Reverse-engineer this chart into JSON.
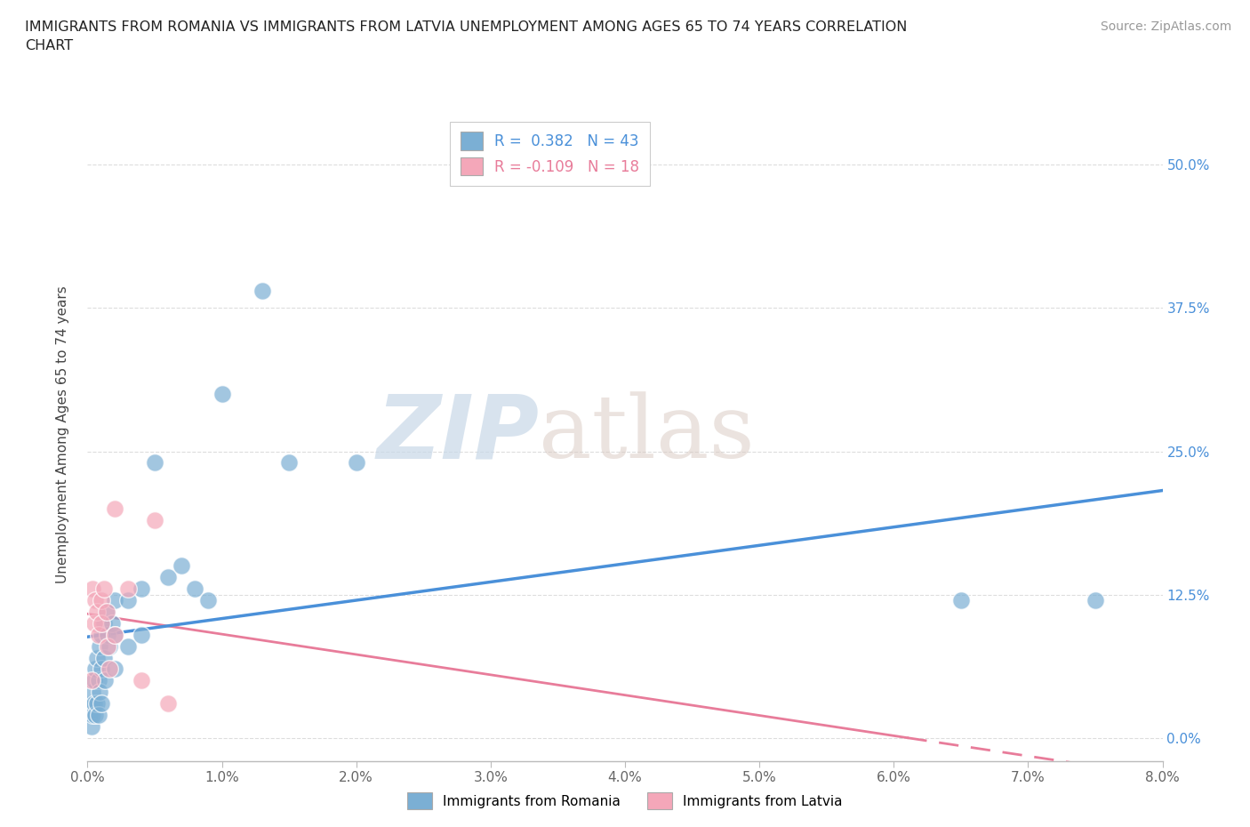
{
  "title": "IMMIGRANTS FROM ROMANIA VS IMMIGRANTS FROM LATVIA UNEMPLOYMENT AMONG AGES 65 TO 74 YEARS CORRELATION\nCHART",
  "source": "Source: ZipAtlas.com",
  "ylabel": "Unemployment Among Ages 65 to 74 years",
  "xlim": [
    0.0,
    0.08
  ],
  "ylim": [
    -0.02,
    0.55
  ],
  "xticks": [
    0.0,
    0.01,
    0.02,
    0.03,
    0.04,
    0.05,
    0.06,
    0.07,
    0.08
  ],
  "xticklabels": [
    "0.0%",
    "1.0%",
    "2.0%",
    "3.0%",
    "4.0%",
    "5.0%",
    "6.0%",
    "7.0%",
    "8.0%"
  ],
  "yticks": [
    0.0,
    0.125,
    0.25,
    0.375,
    0.5
  ],
  "yticklabels": [
    "0.0%",
    "12.5%",
    "25.0%",
    "37.5%",
    "50.0%"
  ],
  "romania_color": "#7bafd4",
  "latvia_color": "#f4a7b9",
  "romania_R": 0.382,
  "romania_N": 43,
  "latvia_R": -0.109,
  "latvia_N": 18,
  "romania_line_color": "#4a90d9",
  "latvia_line_color": "#e87c9a",
  "watermark_zip": "ZIP",
  "watermark_atlas": "atlas",
  "background_color": "#ffffff",
  "grid_color": "#dddddd",
  "romania_x": [
    0.0002,
    0.0003,
    0.0003,
    0.0004,
    0.0004,
    0.0005,
    0.0005,
    0.0006,
    0.0006,
    0.0007,
    0.0007,
    0.0008,
    0.0008,
    0.0009,
    0.0009,
    0.001,
    0.001,
    0.001,
    0.0012,
    0.0012,
    0.0013,
    0.0014,
    0.0015,
    0.0016,
    0.0018,
    0.002,
    0.002,
    0.002,
    0.003,
    0.003,
    0.004,
    0.004,
    0.005,
    0.006,
    0.007,
    0.008,
    0.009,
    0.01,
    0.013,
    0.015,
    0.02,
    0.065,
    0.075
  ],
  "romania_y": [
    0.02,
    0.03,
    0.01,
    0.04,
    0.02,
    0.05,
    0.03,
    0.06,
    0.02,
    0.07,
    0.03,
    0.05,
    0.02,
    0.08,
    0.04,
    0.09,
    0.06,
    0.03,
    0.1,
    0.07,
    0.05,
    0.11,
    0.09,
    0.08,
    0.1,
    0.12,
    0.09,
    0.06,
    0.12,
    0.08,
    0.13,
    0.09,
    0.24,
    0.14,
    0.15,
    0.13,
    0.12,
    0.3,
    0.39,
    0.24,
    0.24,
    0.12,
    0.12
  ],
  "latvia_x": [
    0.0003,
    0.0004,
    0.0005,
    0.0006,
    0.0007,
    0.0008,
    0.001,
    0.001,
    0.0012,
    0.0014,
    0.0015,
    0.0016,
    0.002,
    0.002,
    0.003,
    0.004,
    0.005,
    0.006
  ],
  "latvia_y": [
    0.05,
    0.13,
    0.1,
    0.12,
    0.11,
    0.09,
    0.12,
    0.1,
    0.13,
    0.11,
    0.08,
    0.06,
    0.2,
    0.09,
    0.13,
    0.05,
    0.19,
    0.03
  ]
}
